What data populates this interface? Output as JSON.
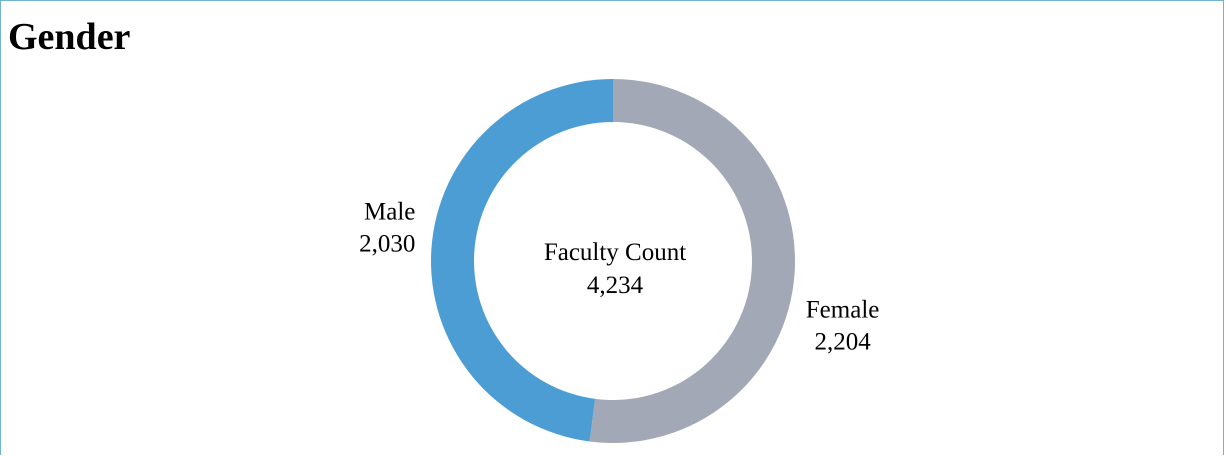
{
  "title": "Gender",
  "chart_data": {
    "type": "pie",
    "center_label": "Faculty Count",
    "total": 4234,
    "total_label": "4,234",
    "series": [
      {
        "name": "Female",
        "value": 2204,
        "value_label": "2,204",
        "color": "#a2a8b6"
      },
      {
        "name": "Male",
        "value": 2030,
        "value_label": "2,030",
        "color": "#4d9dd5"
      }
    ]
  }
}
